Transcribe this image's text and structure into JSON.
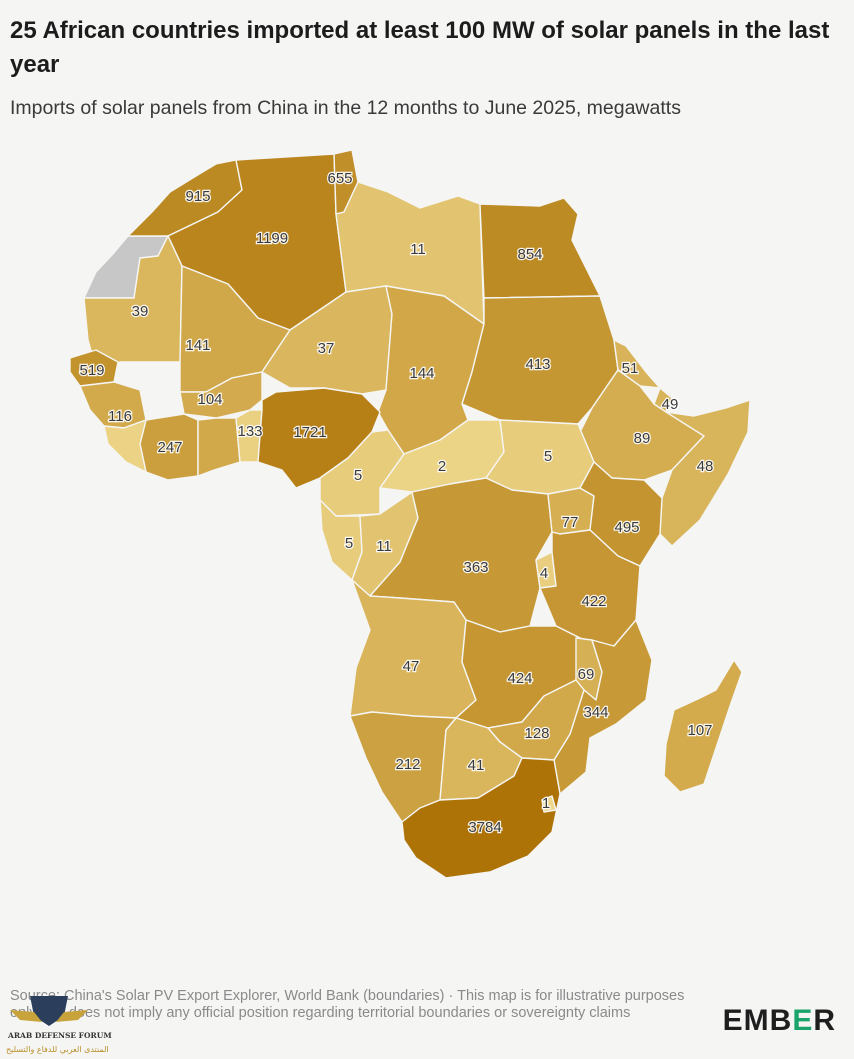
{
  "header": {
    "title": "25 African countries imported at least 100 MW of solar panels in the last year",
    "subtitle": "Imports of solar panels from China in the 12 months to June 2025, megawatts"
  },
  "map": {
    "unit": "megawatts",
    "color_scale": {
      "low": "#eed78b",
      "mid": "#d1a849",
      "high": "#ad7306",
      "no_data": "#c7c7c7"
    },
    "regions": [
      {
        "id": "r-morocco",
        "value": 915
      },
      {
        "id": "r-tunisia",
        "value": 655
      },
      {
        "id": "r-algeria",
        "value": 1199
      },
      {
        "id": "r-libya",
        "value": 11
      },
      {
        "id": "r-egypt",
        "value": 854
      },
      {
        "id": "r-mauritania",
        "value": 39
      },
      {
        "id": "r-mali",
        "value": 141
      },
      {
        "id": "r-niger",
        "value": 37
      },
      {
        "id": "r-chad",
        "value": 144
      },
      {
        "id": "r-sudan",
        "value": 413
      },
      {
        "id": "r-senegal",
        "value": 519
      },
      {
        "id": "r-guinea",
        "value": 116
      },
      {
        "id": "r-burkina",
        "value": 104
      },
      {
        "id": "r-cote",
        "value": 247
      },
      {
        "id": "r-ghana",
        "value": 133
      },
      {
        "id": "r-nigeria",
        "value": 1721
      },
      {
        "id": "r-eritrea",
        "value": 51
      },
      {
        "id": "r-djibouti",
        "value": 49
      },
      {
        "id": "r-ethiopia",
        "value": 89
      },
      {
        "id": "r-somalia",
        "value": 48
      },
      {
        "id": "r-cameroon",
        "value": 5
      },
      {
        "id": "r-car",
        "value": 2
      },
      {
        "id": "r-ssudan",
        "value": 5
      },
      {
        "id": "r-gabon",
        "value": 5
      },
      {
        "id": "r-congo",
        "value": 11
      },
      {
        "id": "r-drc",
        "value": 363
      },
      {
        "id": "r-uganda",
        "value": 77
      },
      {
        "id": "r-kenya",
        "value": 495
      },
      {
        "id": "r-burundi",
        "value": 4
      },
      {
        "id": "r-tanzania",
        "value": 422
      },
      {
        "id": "r-angola",
        "value": 47
      },
      {
        "id": "r-zambia",
        "value": 424
      },
      {
        "id": "r-malawi",
        "value": 69
      },
      {
        "id": "r-mozambique",
        "value": 344
      },
      {
        "id": "r-zimbabwe",
        "value": 128
      },
      {
        "id": "r-madagascar",
        "value": 107
      },
      {
        "id": "r-namibia",
        "value": 212
      },
      {
        "id": "r-botswana",
        "value": 41
      },
      {
        "id": "r-eswatini",
        "value": 1
      },
      {
        "id": "r-southafrica",
        "value": 3784
      },
      {
        "id": "r-wsahara",
        "value": null
      }
    ]
  },
  "footer": {
    "source": "Source: China's Solar PV Export Explorer, World Bank (boundaries) · This map is for illustrative purposes only and does not imply any official position regarding territorial boundaries or sovereignty claims",
    "logo_a": "EMB",
    "logo_b": "E",
    "logo_c": "R",
    "watermark": "ARAB DEFENSE FORUM",
    "watermark_sub": "المنتدى العربي للدفاع والتسليح"
  }
}
